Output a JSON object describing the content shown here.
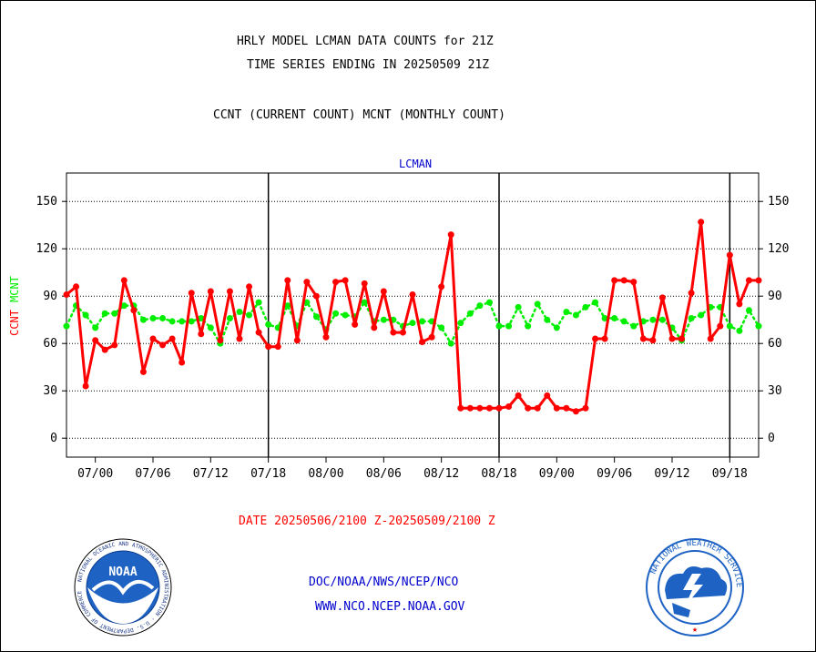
{
  "header": {
    "line1": "HRLY MODEL LCMAN DATA COUNTS for 21Z",
    "line2": "TIME SERIES ENDING IN 20250509 21Z",
    "line3": "CCNT (CURRENT COUNT) MCNT (MONTHLY COUNT)"
  },
  "footer": {
    "date_range": "DATE 20250506/2100 Z-20250509/2100 Z",
    "org": "DOC/NOAA/NWS/NCEP/NCO",
    "url": "WWW.NCO.NCEP.NOAA.GOV"
  },
  "logos": {
    "left": {
      "center_text": "NOAA",
      "ring_text": "NATIONAL OCEANIC AND ATMOSPHERIC ADMINISTRATION · U.S. DEPARTMENT OF COMMERCE",
      "icon": "noaa-seal"
    },
    "right": {
      "ring_text": "NATIONAL WEATHER SERVICE",
      "icon": "nws-seal"
    }
  },
  "colors": {
    "ccnt": "#ff0000",
    "mcnt": "#00ee00",
    "title_blue": "#0000cc",
    "date_red": "#ff0000",
    "axis": "#000000"
  },
  "chart_data": {
    "type": "line",
    "title": "LCMAN",
    "ylabel_left": [
      "CCNT",
      "MCNT"
    ],
    "ylim": [
      -12,
      168
    ],
    "yticks": [
      0,
      30,
      60,
      90,
      120,
      150
    ],
    "x_tick_labels": [
      "07/00",
      "07/06",
      "07/12",
      "07/18",
      "08/00",
      "08/06",
      "08/12",
      "08/18",
      "09/00",
      "09/06",
      "09/12",
      "09/18"
    ],
    "x_tick_hours": [
      3,
      9,
      15,
      21,
      27,
      33,
      39,
      45,
      51,
      57,
      63,
      69
    ],
    "x_range_hours": [
      0,
      72
    ],
    "day_boundaries_hours": [
      21,
      45,
      69
    ],
    "grid": "horizontal dotted",
    "series": [
      {
        "name": "CCNT",
        "color": "#ff0000",
        "values": [
          91,
          96,
          33,
          62,
          56,
          59,
          100,
          81,
          42,
          63,
          59,
          63,
          48,
          92,
          66,
          93,
          62,
          93,
          63,
          96,
          67,
          58,
          58,
          100,
          62,
          99,
          90,
          64,
          99,
          100,
          72,
          98,
          70,
          93,
          67,
          67,
          91,
          61,
          64,
          96,
          129,
          19,
          19,
          19,
          19,
          19,
          20,
          27,
          19,
          19,
          27,
          19,
          19,
          17,
          19,
          63,
          63,
          100,
          100,
          99,
          63,
          62,
          89,
          63,
          63,
          92,
          137,
          63,
          71,
          116,
          85,
          100,
          100
        ]
      },
      {
        "name": "MCNT",
        "color": "#00ee00",
        "values": [
          71,
          84,
          78,
          70,
          79,
          79,
          84,
          84,
          75,
          76,
          76,
          74,
          74,
          74,
          76,
          70,
          60,
          76,
          80,
          78,
          86,
          72,
          70,
          84,
          71,
          86,
          77,
          69,
          79,
          78,
          77,
          86,
          74,
          75,
          75,
          71,
          73,
          74,
          74,
          70,
          60,
          73,
          79,
          84,
          86,
          71,
          71,
          83,
          71,
          85,
          75,
          70,
          80,
          78,
          83,
          86,
          76,
          76,
          74,
          71,
          74,
          75,
          75,
          70,
          62,
          76,
          78,
          83,
          83,
          71,
          68,
          81,
          71
        ]
      }
    ]
  }
}
